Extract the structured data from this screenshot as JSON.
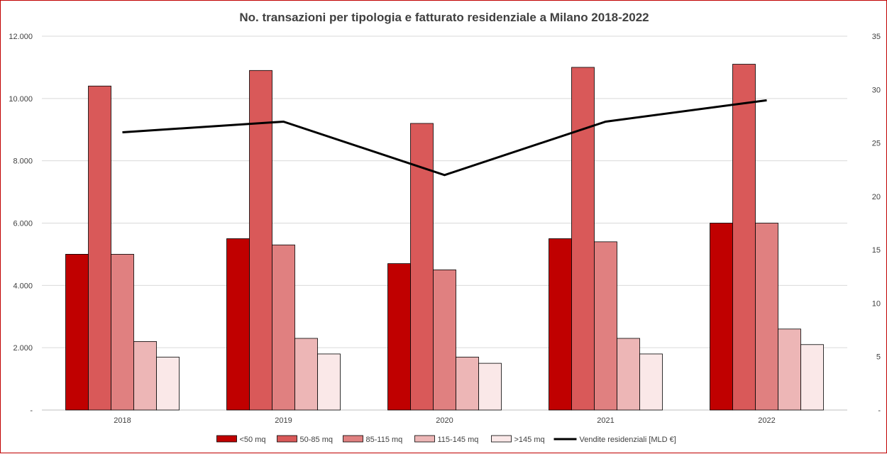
{
  "chart_data": {
    "type": "bar",
    "title": "No. transazioni per tipologia e fatturato residenziale a Milano 2018-2022",
    "categories": [
      "2018",
      "2019",
      "2020",
      "2021",
      "2022"
    ],
    "y_left": {
      "min": 0,
      "max": 12000,
      "ticks": [
        0,
        2000,
        4000,
        6000,
        8000,
        10000,
        12000
      ],
      "tick_labels": [
        "-",
        "2.000",
        "4.000",
        "6.000",
        "8.000",
        "10.000",
        "12.000"
      ]
    },
    "y_right": {
      "min": 0,
      "max": 35,
      "ticks": [
        0,
        5,
        10,
        15,
        20,
        25,
        30,
        35
      ],
      "tick_labels": [
        "-",
        "5",
        "10",
        "15",
        "20",
        "25",
        "30",
        "35"
      ]
    },
    "grid": true,
    "legend_position": "bottom",
    "series": [
      {
        "name": "<50 mq",
        "type": "bar",
        "axis": "left",
        "color": "#c00000",
        "values": [
          5000,
          5500,
          4700,
          5500,
          6000
        ]
      },
      {
        "name": "50-85 mq",
        "type": "bar",
        "axis": "left",
        "color": "#d95959",
        "values": [
          10400,
          10900,
          9200,
          11000,
          11100
        ]
      },
      {
        "name": "85-115 mq",
        "type": "bar",
        "axis": "left",
        "color": "#e08080",
        "values": [
          5000,
          5300,
          4500,
          5400,
          6000
        ]
      },
      {
        "name": "115-145 mq",
        "type": "bar",
        "axis": "left",
        "color": "#edb6b6",
        "values": [
          2200,
          2300,
          1700,
          2300,
          2600
        ]
      },
      {
        "name": ">145 mq",
        "type": "bar",
        "axis": "left",
        "color": "#fae8e8",
        "values": [
          1700,
          1800,
          1500,
          1800,
          2100
        ]
      },
      {
        "name": "Vendite residenziali [MLD €]",
        "type": "line",
        "axis": "right",
        "color": "#000000",
        "values": [
          26,
          27,
          22,
          27,
          29
        ]
      }
    ]
  }
}
